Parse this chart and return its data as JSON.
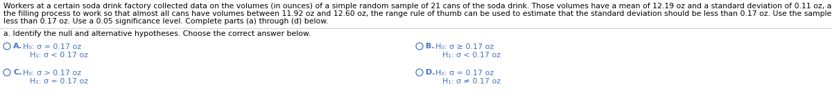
{
  "background_color": "#ffffff",
  "para_lines": [
    "Workers at a certain soda drink factory collected data on the volumes (in ounces) of a simple random sample of 21 cans of the soda drink. Those volumes have a mean of 12.19 oz and a standard deviation of 0.11 oz, and they appear to be from a normally distributed population. If the workers want",
    "the filling process to work so that almost all cans have volumes between 11.92 oz and 12.60 oz, the range rule of thumb can be used to estimate that the standard deviation should be less than 0.17 oz. Use the sample data to test the claim that the population of volumes has a standard deviation",
    "less than 0.17 oz. Use a 0.05 significance level. Complete parts (a) through (d) below."
  ],
  "part_label": "a. Identify the null and alternative hypotheses. Choose the correct answer below.",
  "options": [
    {
      "letter": "A",
      "h0": "H₀: σ = 0.17 oz",
      "h1": "H₁: σ < 0.17 oz",
      "col": 0,
      "row": 0
    },
    {
      "letter": "B",
      "h0": "H₀: σ ≥ 0.17 oz",
      "h1": "H₁: σ < 0.17 oz",
      "col": 1,
      "row": 0
    },
    {
      "letter": "C",
      "h0": "H₀: σ > 0.17 oz",
      "h1": "H₁: σ = 0.17 oz",
      "col": 0,
      "row": 1
    },
    {
      "letter": "D",
      "h0": "H₀: σ = 0.17 oz",
      "h1": "H₁: σ ≠ 0.17 oz",
      "col": 1,
      "row": 1
    }
  ],
  "text_color": "#000000",
  "option_color": "#4472c4",
  "para_fontsize": 7.8,
  "part_fontsize": 7.8,
  "option_fontsize": 8.0
}
